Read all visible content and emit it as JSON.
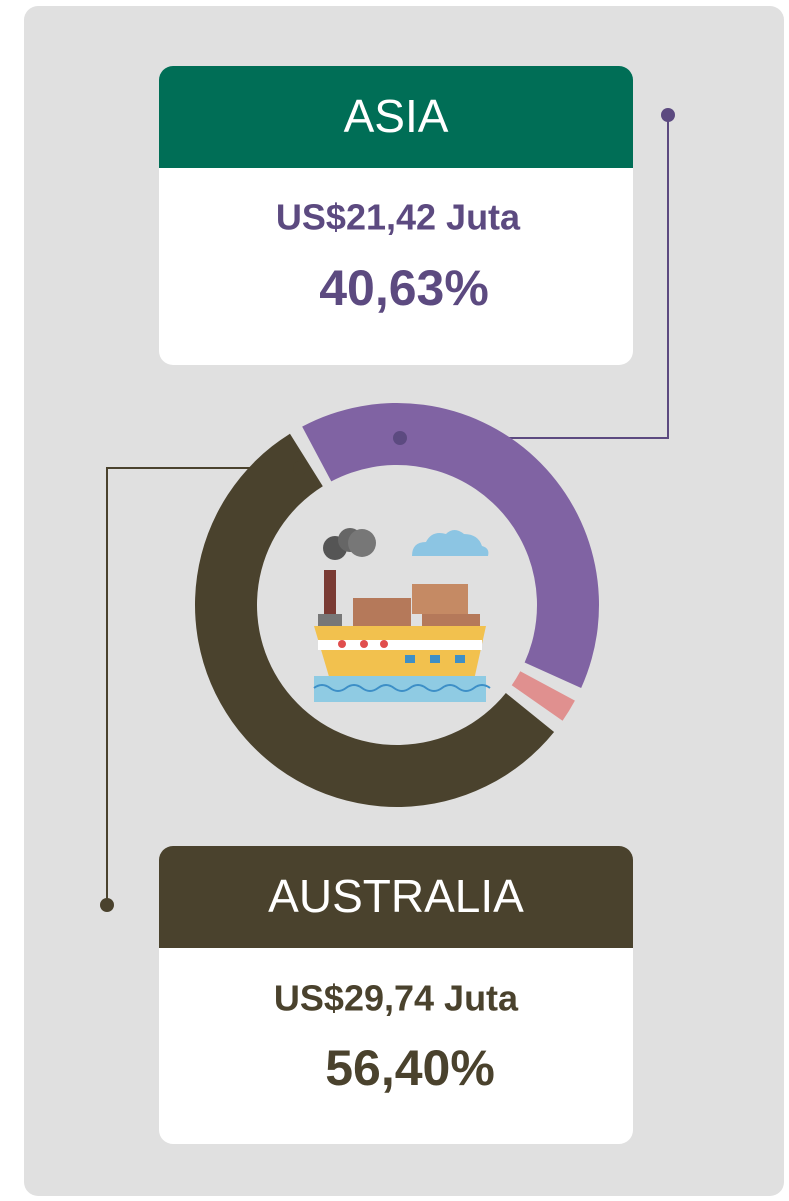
{
  "chart_data": {
    "type": "pie",
    "donut": true,
    "categories": [
      "ASIA",
      null,
      "AUSTRALIA"
    ],
    "values": [
      40.63,
      2.97,
      56.4
    ],
    "value_labels": [
      "40,63%",
      null,
      "56,40%"
    ],
    "amounts": [
      {
        "value": 21.42,
        "label": "US$21,42 Juta"
      },
      null,
      {
        "value": 29.74,
        "label": "US$29,74 Juta"
      }
    ],
    "colors": [
      "#8063a3",
      "#e0908f",
      "#4a422d"
    ],
    "start_angle": -30
  }
}
